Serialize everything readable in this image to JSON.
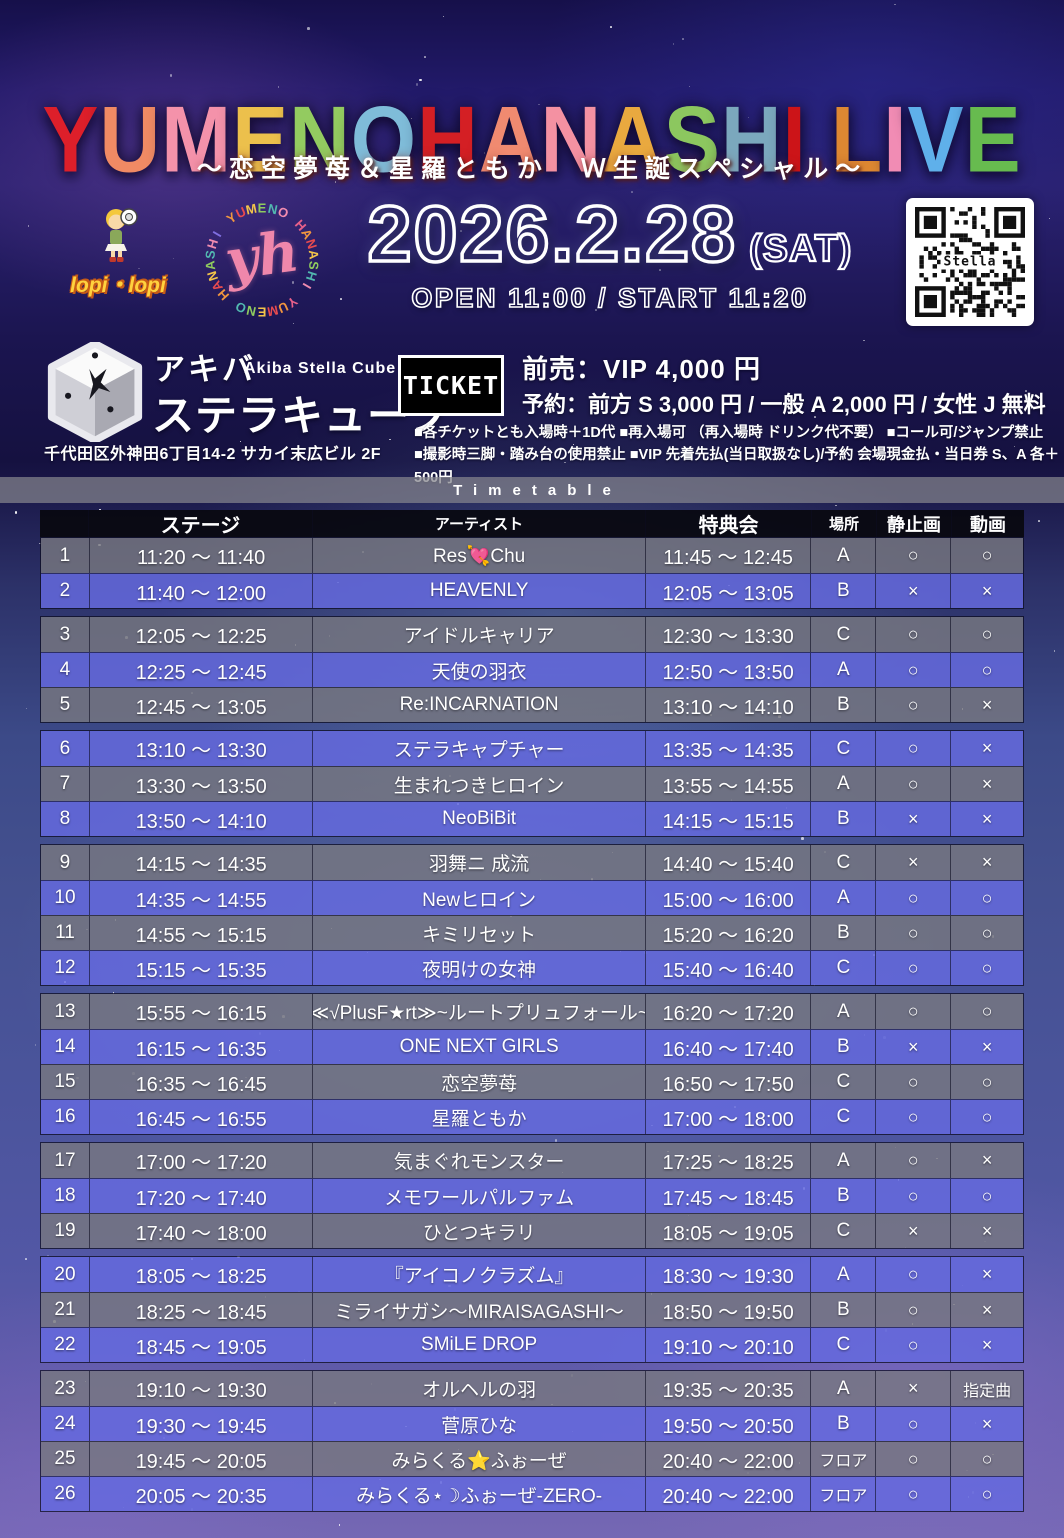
{
  "title": {
    "text": "YUMENOHANASHI LIVE",
    "letters": [
      {
        "ch": "Y",
        "color": "#dd1f2a"
      },
      {
        "ch": "U",
        "color": "#f08a64"
      },
      {
        "ch": "M",
        "color": "#f492aa"
      },
      {
        "ch": "E",
        "color": "#ecc04c"
      },
      {
        "ch": "N",
        "color": "#93cb60"
      },
      {
        "ch": "O",
        "color": "#7fbcd9"
      },
      {
        "ch": "H",
        "color": "#d41f24"
      },
      {
        "ch": "A",
        "color": "#f08a70"
      },
      {
        "ch": "N",
        "color": "#f491a2"
      },
      {
        "ch": "A",
        "color": "#e9a93f"
      },
      {
        "ch": "S",
        "color": "#8cc75f"
      },
      {
        "ch": "H",
        "color": "#7ba8bd"
      },
      {
        "ch": "I",
        "color": "#cc1418"
      },
      {
        "ch": " ",
        "color": ""
      },
      {
        "ch": "L",
        "color": "#dd8832"
      },
      {
        "ch": "I",
        "color": "#f18cb4"
      },
      {
        "ch": "V",
        "color": "#5fb0ea"
      },
      {
        "ch": "E",
        "color": "#67bb4f"
      }
    ]
  },
  "subtitle": "～恋空夢苺＆星羅ともか　Ｗ生誕スペシャル～",
  "logos": {
    "lopi_label": "lopi・lopi",
    "ring_center": "yh",
    "ring_text": "HANASHI YUMENO HANASHI YUMENO ",
    "ring_palette": [
      "#f0953f",
      "#e84b4f",
      "#f3c44a",
      "#8fcb5e",
      "#52b8b0",
      "#f08cb0",
      "#7f6fe0",
      "#e8608a"
    ]
  },
  "date": {
    "main": "2026.2.28",
    "day": "(SAT)",
    "open_start": "OPEN 11:00 / START 11:20"
  },
  "qr": {
    "label": "Stella"
  },
  "venue": {
    "name_kana_small": "アキバ",
    "name_en": "Akiba Stella Cube",
    "name_kana_large": "ステラキューブ",
    "tick": "”",
    "address": "千代田区外神田6丁目14-2 サカイ末広ビル 2F"
  },
  "ticket": {
    "box_label": "TICKET",
    "line1": "前売：VIP  4,000 円",
    "line2": "予約：前方 S  3,000 円 /  一般 A  2,000 円 /  女性 J  無料",
    "note1": "■各チケットとも入場時＋1D代  ■再入場可 （再入場時 ドリンク代不要） ■コール可/ジャンプ禁止",
    "note2": "■撮影時三脚・踏み台の使用禁止 ■VIP 先着先払(当日取扱なし)/予約 会場現金払・当日券 S、A 各＋500円"
  },
  "timetable": {
    "heading": "Timetable",
    "columns": [
      "",
      "ステージ",
      "アーティスト",
      "特典会",
      "場所",
      "静止画",
      "動画"
    ],
    "groups": [
      [
        1,
        2
      ],
      [
        3,
        4,
        5
      ],
      [
        6,
        7,
        8
      ],
      [
        9,
        10,
        11,
        12
      ],
      [
        13,
        14,
        15,
        16
      ],
      [
        17,
        18,
        19
      ],
      [
        20,
        21,
        22
      ],
      [
        23,
        24,
        25,
        26
      ]
    ],
    "rows": [
      {
        "no": "1",
        "stage": "11:20 ～ 11:40",
        "artist": "Res💘Chu",
        "meet": "11:45 ～ 12:45",
        "place": "A",
        "photo": "○",
        "video": "○"
      },
      {
        "no": "2",
        "stage": "11:40 ～ 12:00",
        "artist": "HEAVENLY",
        "meet": "12:05 ～ 13:05",
        "place": "B",
        "photo": "×",
        "video": "×"
      },
      {
        "no": "3",
        "stage": "12:05 ～ 12:25",
        "artist": "アイドルキャリア",
        "meet": "12:30 ～ 13:30",
        "place": "C",
        "photo": "○",
        "video": "○"
      },
      {
        "no": "4",
        "stage": "12:25 ～ 12:45",
        "artist": "天使の羽衣",
        "meet": "12:50 ～ 13:50",
        "place": "A",
        "photo": "○",
        "video": "○"
      },
      {
        "no": "5",
        "stage": "12:45 ～ 13:05",
        "artist": "Re:INCARNATION",
        "meet": "13:10 ～ 14:10",
        "place": "B",
        "photo": "○",
        "video": "×"
      },
      {
        "no": "6",
        "stage": "13:10 ～ 13:30",
        "artist": "ステラキャプチャー",
        "meet": "13:35 ～ 14:35",
        "place": "C",
        "photo": "○",
        "video": "×"
      },
      {
        "no": "7",
        "stage": "13:30 ～ 13:50",
        "artist": "生まれつきヒロイン",
        "meet": "13:55 ～ 14:55",
        "place": "A",
        "photo": "○",
        "video": "×"
      },
      {
        "no": "8",
        "stage": "13:50 ～ 14:10",
        "artist": "NeoBiBit",
        "meet": "14:15 ～ 15:15",
        "place": "B",
        "photo": "×",
        "video": "×"
      },
      {
        "no": "9",
        "stage": "14:15 ～ 14:35",
        "artist": "羽舞ニ 成流",
        "meet": "14:40 ～ 15:40",
        "place": "C",
        "photo": "×",
        "video": "×"
      },
      {
        "no": "10",
        "stage": "14:35 ～ 14:55",
        "artist": "Newヒロイン",
        "meet": "15:00 ～ 16:00",
        "place": "A",
        "photo": "○",
        "video": "○"
      },
      {
        "no": "11",
        "stage": "14:55 ～ 15:15",
        "artist": "キミリセット",
        "meet": "15:20 ～ 16:20",
        "place": "B",
        "photo": "○",
        "video": "○"
      },
      {
        "no": "12",
        "stage": "15:15 ～ 15:35",
        "artist": "夜明けの女神",
        "meet": "15:40 ～ 16:40",
        "place": "C",
        "photo": "○",
        "video": "○"
      },
      {
        "no": "13",
        "stage": "15:55 ～ 16:15",
        "artist": "≪√PlusF★rt≫~ルートプリュフォール~",
        "meet": "16:20 ～ 17:20",
        "place": "A",
        "photo": "○",
        "video": "○"
      },
      {
        "no": "14",
        "stage": "16:15 ～ 16:35",
        "artist": "ONE NEXT GIRLS",
        "meet": "16:40 ～ 17:40",
        "place": "B",
        "photo": "×",
        "video": "×"
      },
      {
        "no": "15",
        "stage": "16:35 ～ 16:45",
        "artist": "恋空夢苺",
        "meet": "16:50 ～ 17:50",
        "place": "C",
        "photo": "○",
        "video": "○"
      },
      {
        "no": "16",
        "stage": "16:45 ～ 16:55",
        "artist": "星羅ともか",
        "meet": "17:00 ～ 18:00",
        "place": "C",
        "photo": "○",
        "video": "○"
      },
      {
        "no": "17",
        "stage": "17:00 ～ 17:20",
        "artist": "気まぐれモンスター",
        "meet": "17:25 ～ 18:25",
        "place": "A",
        "photo": "○",
        "video": "×"
      },
      {
        "no": "18",
        "stage": "17:20 ～ 17:40",
        "artist": "メモワールパルファム",
        "meet": "17:45 ～ 18:45",
        "place": "B",
        "photo": "○",
        "video": "○"
      },
      {
        "no": "19",
        "stage": "17:40 ～ 18:00",
        "artist": "ひとつキラリ",
        "meet": "18:05 ～ 19:05",
        "place": "C",
        "photo": "×",
        "video": "×"
      },
      {
        "no": "20",
        "stage": "18:05 ～ 18:25",
        "artist": "『アイコノクラズム』",
        "meet": "18:30 ～ 19:30",
        "place": "A",
        "photo": "○",
        "video": "×"
      },
      {
        "no": "21",
        "stage": "18:25 ～ 18:45",
        "artist": "ミライサガシ～MIRAISAGASHI～",
        "meet": "18:50 ～ 19:50",
        "place": "B",
        "photo": "○",
        "video": "×"
      },
      {
        "no": "22",
        "stage": "18:45 ～ 19:05",
        "artist": "SMiLE DROP",
        "meet": "19:10 ～ 20:10",
        "place": "C",
        "photo": "○",
        "video": "×"
      },
      {
        "no": "23",
        "stage": "19:10 ～ 19:30",
        "artist": "オルヘルの羽",
        "meet": "19:35 ～ 20:35",
        "place": "A",
        "photo": "×",
        "video": "指定曲"
      },
      {
        "no": "24",
        "stage": "19:30 ～ 19:45",
        "artist": "菅原ひな",
        "meet": "19:50 ～ 20:50",
        "place": "B",
        "photo": "○",
        "video": "×"
      },
      {
        "no": "25",
        "stage": "19:45 ～ 20:05",
        "artist": "みらくる⭐ふぉーぜ",
        "meet": "20:40 ～ 22:00",
        "place": "フロア",
        "photo": "○",
        "video": "○"
      },
      {
        "no": "26",
        "stage": "20:05 ～ 20:35",
        "artist": "みらくる⋆☽ふぉーぜ-ZERO-",
        "meet": "20:40 ～ 22:00",
        "place": "フロア",
        "photo": "○",
        "video": "○"
      }
    ]
  },
  "colors": {
    "row_blue": "#656add",
    "row_gray": "#777780",
    "header_bg": "#08080f",
    "accent_pink": "#ef87ab"
  }
}
